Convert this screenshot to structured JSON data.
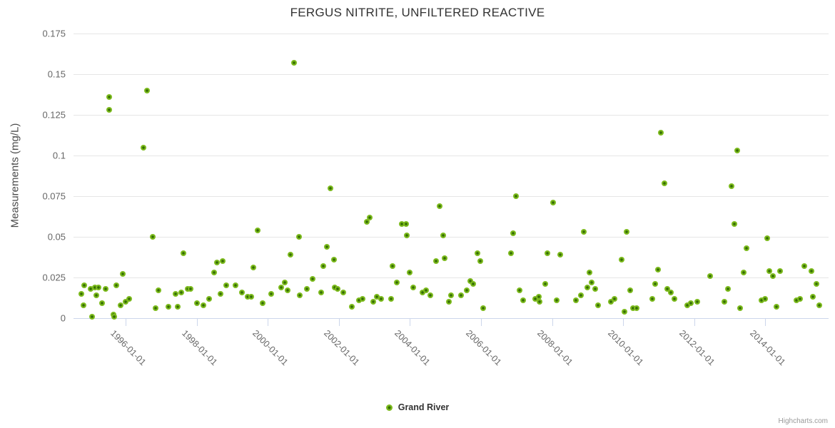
{
  "header": {
    "title": "FERGUS NITRITE, UNFILTERED REACTIVE"
  },
  "legend": {
    "items": [
      {
        "label": "Grand River",
        "marker_color": "#7cba1d"
      }
    ]
  },
  "credits": {
    "label": "Highcharts.com"
  },
  "colors": {
    "marker_outer": "#7cba1d",
    "marker_inner": "#356e04",
    "gridline": "#e6e6e6",
    "axis_line": "#ccd6eb",
    "title_text": "#333333",
    "tick_text": "#666666"
  },
  "chart_data": {
    "type": "scatter",
    "title": "FERGUS NITRITE, UNFILTERED REACTIVE",
    "xlabel": "",
    "ylabel": "Measurements (mg/L)",
    "grid": "horizontal",
    "legend_position": "bottom-center",
    "ylim": [
      0,
      0.175
    ],
    "xlim": [
      1994.53,
      2015.78
    ],
    "yticks": [
      0,
      0.025,
      0.05,
      0.075,
      0.1,
      0.125,
      0.15,
      0.175
    ],
    "ytick_labels": [
      "0",
      "0.025",
      "0.05",
      "0.075",
      "0.1",
      "0.125",
      "0.15",
      "0.175"
    ],
    "xticks": [
      1996,
      1998,
      2000,
      2002,
      2004,
      2006,
      2008,
      2010,
      2012,
      2014
    ],
    "xtick_labels": [
      "1996-01-01",
      "1998-01-01",
      "2000-01-01",
      "2002-01-01",
      "2004-01-01",
      "2006-01-01",
      "2008-01-01",
      "2010-01-01",
      "2012-01-01",
      "2014-01-01"
    ],
    "x_unit": "decimal_year",
    "series": [
      {
        "name": "Grand River",
        "points": [
          [
            1994.76,
            0.015
          ],
          [
            1994.81,
            0.008
          ],
          [
            1994.84,
            0.02
          ],
          [
            1995.01,
            0.018
          ],
          [
            1995.05,
            0.001
          ],
          [
            1995.13,
            0.019
          ],
          [
            1995.17,
            0.014
          ],
          [
            1995.24,
            0.019
          ],
          [
            1995.33,
            0.009
          ],
          [
            1995.44,
            0.018
          ],
          [
            1995.53,
            0.136
          ],
          [
            1995.53,
            0.128
          ],
          [
            1995.66,
            0.002
          ],
          [
            1995.67,
            0.001
          ],
          [
            1995.74,
            0.02
          ],
          [
            1995.86,
            0.008
          ],
          [
            1995.91,
            0.027
          ],
          [
            1996.0,
            0.01
          ],
          [
            1996.1,
            0.012
          ],
          [
            1996.5,
            0.105
          ],
          [
            1996.6,
            0.14
          ],
          [
            1996.75,
            0.05
          ],
          [
            1996.83,
            0.006
          ],
          [
            1996.92,
            0.017
          ],
          [
            1997.2,
            0.007
          ],
          [
            1997.4,
            0.015
          ],
          [
            1997.47,
            0.007
          ],
          [
            1997.57,
            0.016
          ],
          [
            1997.63,
            0.04
          ],
          [
            1997.74,
            0.018
          ],
          [
            1997.82,
            0.018
          ],
          [
            1998.0,
            0.009
          ],
          [
            1998.18,
            0.008
          ],
          [
            1998.35,
            0.012
          ],
          [
            1998.48,
            0.028
          ],
          [
            1998.57,
            0.034
          ],
          [
            1998.66,
            0.015
          ],
          [
            1998.72,
            0.035
          ],
          [
            1998.83,
            0.02
          ],
          [
            1999.08,
            0.02
          ],
          [
            1999.28,
            0.016
          ],
          [
            1999.43,
            0.013
          ],
          [
            1999.53,
            0.013
          ],
          [
            1999.59,
            0.031
          ],
          [
            1999.71,
            0.054
          ],
          [
            1999.86,
            0.009
          ],
          [
            2000.1,
            0.015
          ],
          [
            2000.38,
            0.019
          ],
          [
            2000.48,
            0.022
          ],
          [
            2000.56,
            0.017
          ],
          [
            2000.63,
            0.039
          ],
          [
            2000.73,
            0.157
          ],
          [
            2000.87,
            0.05
          ],
          [
            2000.9,
            0.014
          ],
          [
            2001.1,
            0.018
          ],
          [
            2001.25,
            0.024
          ],
          [
            2001.49,
            0.016
          ],
          [
            2001.56,
            0.032
          ],
          [
            2001.66,
            0.044
          ],
          [
            2001.77,
            0.08
          ],
          [
            2001.86,
            0.036
          ],
          [
            2001.88,
            0.019
          ],
          [
            2001.96,
            0.018
          ],
          [
            2002.12,
            0.016
          ],
          [
            2002.37,
            0.007
          ],
          [
            2002.56,
            0.011
          ],
          [
            2002.66,
            0.012
          ],
          [
            2002.79,
            0.059
          ],
          [
            2002.86,
            0.062
          ],
          [
            2002.96,
            0.01
          ],
          [
            2003.06,
            0.013
          ],
          [
            2003.19,
            0.012
          ],
          [
            2003.46,
            0.012
          ],
          [
            2003.5,
            0.032
          ],
          [
            2003.63,
            0.022
          ],
          [
            2003.76,
            0.058
          ],
          [
            2003.89,
            0.058
          ],
          [
            2003.9,
            0.051
          ],
          [
            2004.0,
            0.028
          ],
          [
            2004.1,
            0.019
          ],
          [
            2004.35,
            0.016
          ],
          [
            2004.46,
            0.017
          ],
          [
            2004.58,
            0.014
          ],
          [
            2004.73,
            0.035
          ],
          [
            2004.83,
            0.069
          ],
          [
            2004.93,
            0.051
          ],
          [
            2004.98,
            0.037
          ],
          [
            2005.1,
            0.01
          ],
          [
            2005.16,
            0.014
          ],
          [
            2005.43,
            0.014
          ],
          [
            2005.59,
            0.017
          ],
          [
            2005.69,
            0.023
          ],
          [
            2005.77,
            0.021
          ],
          [
            2005.9,
            0.04
          ],
          [
            2005.97,
            0.035
          ],
          [
            2006.05,
            0.006
          ],
          [
            2006.84,
            0.04
          ],
          [
            2006.91,
            0.052
          ],
          [
            2006.99,
            0.075
          ],
          [
            2007.08,
            0.017
          ],
          [
            2007.18,
            0.011
          ],
          [
            2007.53,
            0.012
          ],
          [
            2007.63,
            0.013
          ],
          [
            2007.65,
            0.01
          ],
          [
            2007.81,
            0.021
          ],
          [
            2007.86,
            0.04
          ],
          [
            2008.03,
            0.071
          ],
          [
            2008.12,
            0.011
          ],
          [
            2008.23,
            0.039
          ],
          [
            2008.67,
            0.011
          ],
          [
            2008.82,
            0.014
          ],
          [
            2008.9,
            0.053
          ],
          [
            2008.99,
            0.019
          ],
          [
            2009.05,
            0.028
          ],
          [
            2009.12,
            0.022
          ],
          [
            2009.21,
            0.018
          ],
          [
            2009.29,
            0.008
          ],
          [
            2009.66,
            0.01
          ],
          [
            2009.76,
            0.012
          ],
          [
            2009.96,
            0.036
          ],
          [
            2010.03,
            0.004
          ],
          [
            2010.1,
            0.053
          ],
          [
            2010.19,
            0.017
          ],
          [
            2010.27,
            0.006
          ],
          [
            2010.37,
            0.006
          ],
          [
            2010.81,
            0.012
          ],
          [
            2010.89,
            0.021
          ],
          [
            2010.97,
            0.03
          ],
          [
            2011.06,
            0.114
          ],
          [
            2011.16,
            0.083
          ],
          [
            2011.24,
            0.018
          ],
          [
            2011.34,
            0.016
          ],
          [
            2011.44,
            0.012
          ],
          [
            2011.8,
            0.008
          ],
          [
            2011.9,
            0.009
          ],
          [
            2012.08,
            0.01
          ],
          [
            2012.44,
            0.026
          ],
          [
            2012.84,
            0.01
          ],
          [
            2012.94,
            0.018
          ],
          [
            2013.04,
            0.081
          ],
          [
            2013.12,
            0.058
          ],
          [
            2013.21,
            0.103
          ],
          [
            2013.29,
            0.006
          ],
          [
            2013.39,
            0.028
          ],
          [
            2013.47,
            0.043
          ],
          [
            2013.9,
            0.011
          ],
          [
            2014.0,
            0.012
          ],
          [
            2014.06,
            0.049
          ],
          [
            2014.11,
            0.029
          ],
          [
            2014.21,
            0.026
          ],
          [
            2014.31,
            0.007
          ],
          [
            2014.42,
            0.029
          ],
          [
            2014.88,
            0.011
          ],
          [
            2014.97,
            0.012
          ],
          [
            2015.1,
            0.032
          ],
          [
            2015.29,
            0.029
          ],
          [
            2015.33,
            0.013
          ],
          [
            2015.43,
            0.021
          ],
          [
            2015.52,
            0.008
          ]
        ]
      }
    ]
  }
}
